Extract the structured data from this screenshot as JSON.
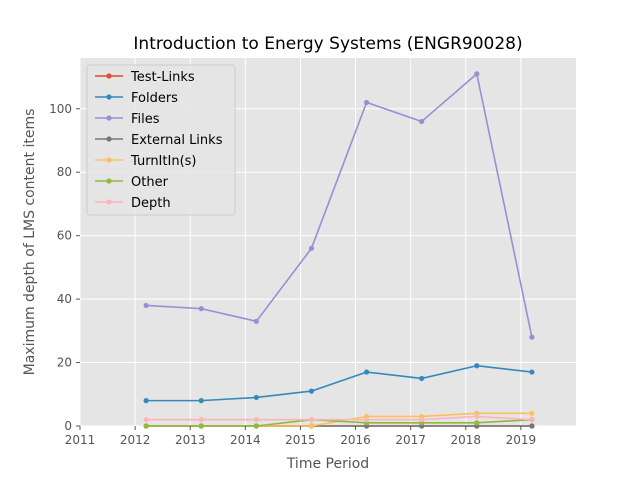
{
  "chart_data": {
    "type": "line",
    "title": "Introduction to Energy Systems (ENGR90028)",
    "xlabel": "Time Period",
    "ylabel": "Maximum depth of LMS content items",
    "xlim": [
      2011,
      2020
    ],
    "ylim": [
      0,
      116
    ],
    "xticks": [
      2011,
      2012,
      2013,
      2014,
      2015,
      2016,
      2017,
      2018,
      2019
    ],
    "yticks": [
      0,
      20,
      40,
      60,
      80,
      100
    ],
    "grid": true,
    "legend_position": "top-left",
    "x": [
      2012.2,
      2013.2,
      2014.2,
      2015.2,
      2016.2,
      2017.2,
      2018.2,
      2019.2
    ],
    "series": [
      {
        "name": "Test-Links",
        "color": "#E24A33",
        "values": [
          0,
          0,
          0,
          0,
          0,
          0,
          0,
          0
        ]
      },
      {
        "name": "Folders",
        "color": "#348ABD",
        "values": [
          8,
          8,
          9,
          11,
          17,
          15,
          19,
          17
        ]
      },
      {
        "name": "Files",
        "color": "#988ED5",
        "values": [
          38,
          37,
          33,
          56,
          102,
          96,
          111,
          28
        ]
      },
      {
        "name": "External Links",
        "color": "#777777",
        "values": [
          0,
          0,
          0,
          0,
          0,
          0,
          0,
          0
        ]
      },
      {
        "name": "TurnItIn(s)",
        "color": "#FBC15E",
        "values": [
          0,
          0,
          0,
          0,
          3,
          3,
          4,
          4
        ]
      },
      {
        "name": "Other",
        "color": "#8EBA42",
        "values": [
          0,
          0,
          0,
          2,
          1,
          1,
          1,
          2
        ]
      },
      {
        "name": "Depth",
        "color": "#FFB5B8",
        "values": [
          2,
          2,
          2,
          2,
          2,
          2,
          3,
          2
        ]
      }
    ]
  }
}
